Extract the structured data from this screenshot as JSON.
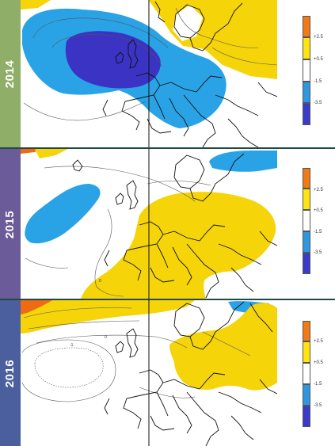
{
  "panels": [
    {
      "year": "2014",
      "tab_color": "#8faf68",
      "legend_ticks": [
        "+2.5",
        "+0.5",
        "-1.5",
        "-3.5"
      ]
    },
    {
      "year": "2015",
      "tab_color": "#6b5b98",
      "legend_ticks": [
        "+2.5",
        "+0.5",
        "-1.5",
        "-3.5"
      ]
    },
    {
      "year": "2016",
      "tab_color": "#4b5f9e",
      "legend_ticks": [
        "+2.5",
        "+0.5",
        "-1.5",
        "-3.5"
      ]
    }
  ],
  "contour_labels": {
    "p2015": [
      "0"
    ],
    "p2016": [
      "0",
      "-1"
    ]
  },
  "legend_colors": [
    "#f07a16",
    "#ffe413",
    "#ffffff",
    "#2f97e0",
    "#3b3bc9"
  ],
  "anomaly_colors": {
    "strong_negative": "#3a33c4",
    "negative": "#2aa3e6",
    "positive": "#f5d409",
    "strong_positive": "#ef6a14",
    "coastline": "#111111",
    "contour": "#555555"
  }
}
